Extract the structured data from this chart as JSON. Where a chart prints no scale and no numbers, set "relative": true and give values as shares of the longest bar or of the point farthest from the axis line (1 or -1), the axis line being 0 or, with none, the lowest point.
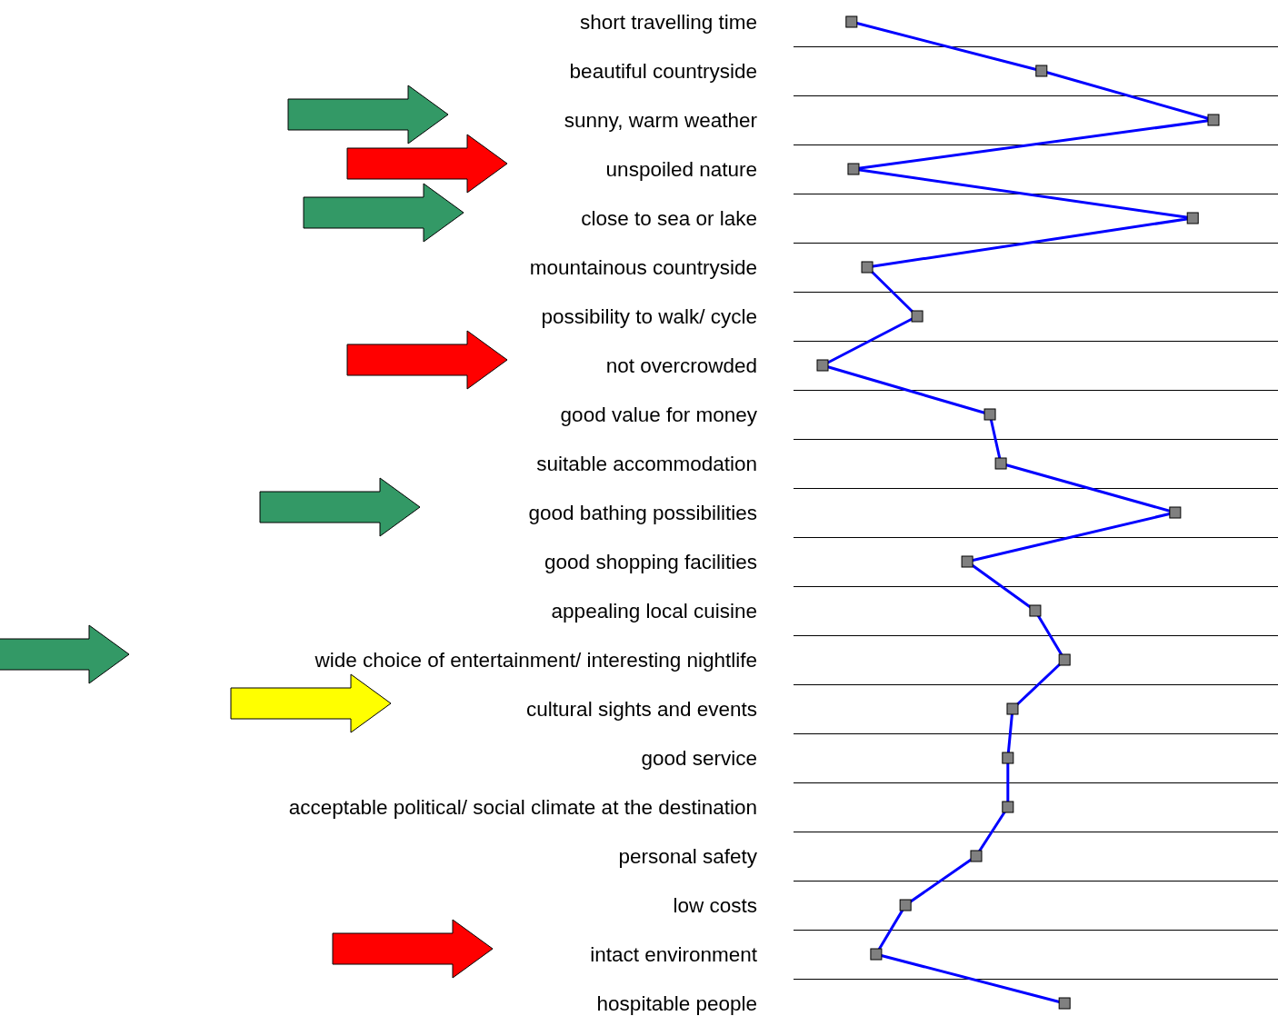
{
  "chart_data": {
    "type": "line",
    "orientation": "horizontal",
    "relative": true,
    "grid": "y",
    "marker": "square",
    "line_style": "solid",
    "categories": [
      "short travelling time",
      "beautiful countryside",
      "sunny, warm weather",
      "unspoiled nature",
      "close to sea or lake",
      "mountainous countryside",
      "possibility to walk/ cycle",
      "not overcrowded",
      "good value for money",
      "suitable accommodation",
      "good bathing possibilities",
      "good shopping facilities",
      "appealing local cuisine",
      "wide choice of entertainment/ interesting nightlife",
      "cultural sights and events",
      "good service",
      "acceptable political/ social climate at the destination",
      "personal safety",
      "low costs",
      "intact environment",
      "hospitable people"
    ],
    "series": [
      {
        "color": "#0000ff",
        "values": [
          0.074,
          0.56,
          1,
          0.079,
          0.947,
          0.114,
          0.242,
          0,
          0.428,
          0.456,
          0.902,
          0.37,
          0.544,
          0.619,
          0.486,
          0.474,
          0.474,
          0.393,
          0.212,
          0.137,
          0.619
        ]
      }
    ]
  }
}
